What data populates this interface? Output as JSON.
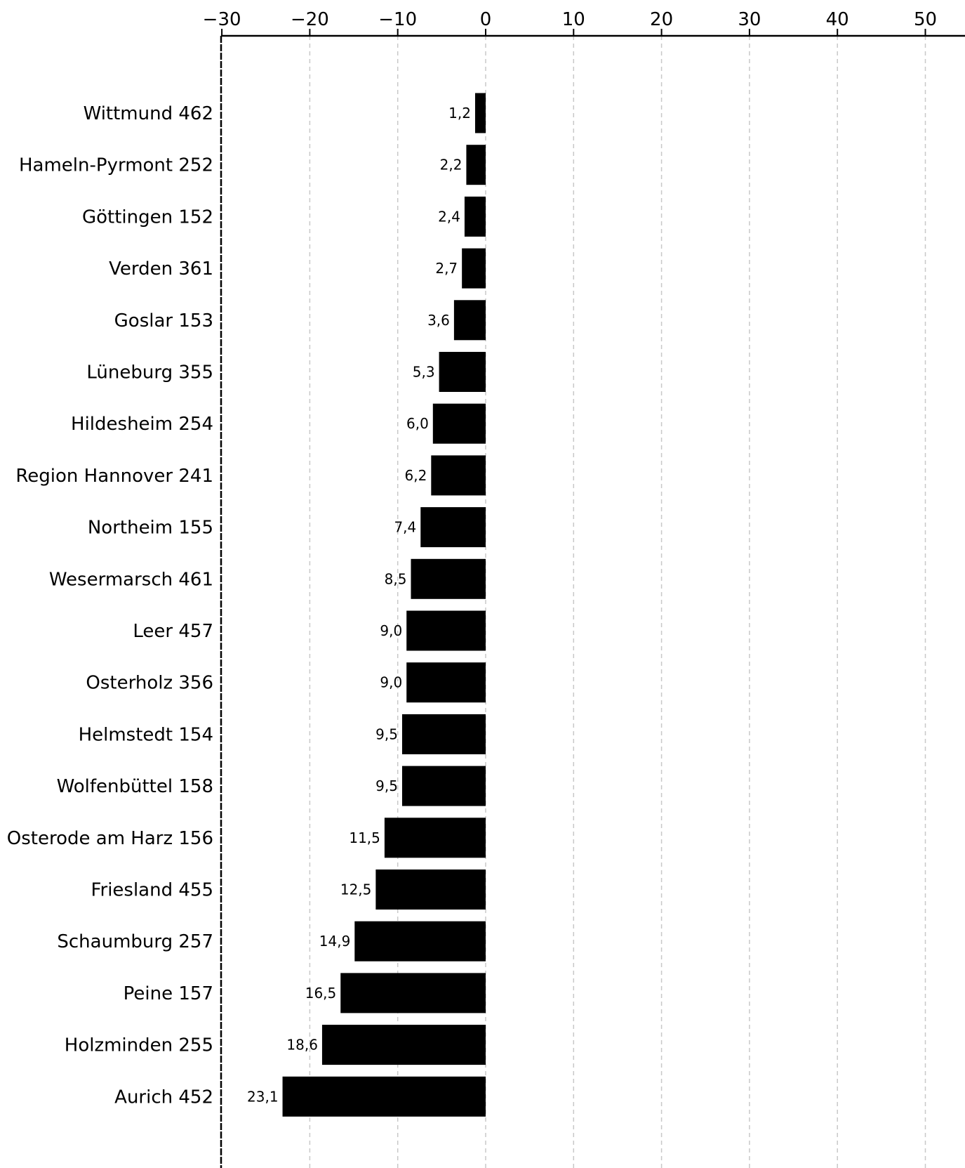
{
  "chart_data": {
    "type": "bar",
    "orientation": "horizontal",
    "title": "",
    "xlabel": "",
    "ylabel": "",
    "xlim": [
      -30,
      55
    ],
    "xticks": [
      -30,
      -20,
      -10,
      0,
      10,
      20,
      30,
      40,
      50
    ],
    "xtick_labels": [
      "−30",
      "−20",
      "−10",
      "0",
      "10",
      "20",
      "30",
      "40",
      "50"
    ],
    "x_axis_position": "top",
    "grid": "vertical dashed",
    "bar_color": "#000000",
    "categories": [
      "Wittmund 462",
      "Hameln-Pyrmont 252",
      "Göttingen 152",
      "Verden 361",
      "Goslar 153",
      "Lüneburg 355",
      "Hildesheim 254",
      "Region Hannover 241",
      "Northeim 155",
      "Wesermarsch 461",
      "Leer 457",
      "Osterholz 356",
      "Helmstedt 154",
      "Wolfenbüttel 158",
      "Osterode am Harz 156",
      "Friesland 455",
      "Schaumburg 257",
      "Peine 157",
      "Holzminden 255",
      "Aurich 452"
    ],
    "values": [
      -1.2,
      -2.2,
      -2.4,
      -2.7,
      -3.6,
      -5.3,
      -6.0,
      -6.2,
      -7.4,
      -8.5,
      -9.0,
      -9.0,
      -9.5,
      -9.5,
      -11.5,
      -12.5,
      -14.9,
      -16.5,
      -18.6,
      -23.1
    ],
    "data_labels": [
      "1,2",
      "2,2",
      "2,4",
      "2,7",
      "3,6",
      "5,3",
      "6,0",
      "6,2",
      "7,4",
      "8,5",
      "9,0",
      "9,0",
      "9,5",
      "9,5",
      "11,5",
      "12,5",
      "14,9",
      "16,5",
      "18,6",
      "23,1"
    ]
  }
}
